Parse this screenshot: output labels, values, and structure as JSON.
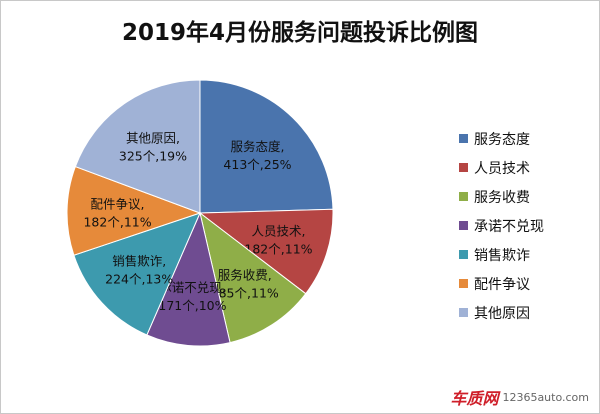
{
  "chart_data": {
    "type": "pie",
    "title": "2019年4月份服务问题投诉比例图",
    "slices": [
      {
        "name": "服务态度",
        "value": 413,
        "pct": "25%",
        "label1": "服务态度,",
        "label2": "413个,25%",
        "color": "#4a74ad"
      },
      {
        "name": "人员技术",
        "value": 182,
        "pct": "11%",
        "label1": "人员技术,",
        "label2": "182个,11%",
        "color": "#b54543"
      },
      {
        "name": "服务收费",
        "value": 185,
        "pct": "11%",
        "label1": "服务收费,",
        "label2": "185个,11%",
        "color": "#8fae48"
      },
      {
        "name": "承诺不兑现",
        "value": 171,
        "pct": "10%",
        "label1": "承诺不兑现,",
        "label2": "171个,10%",
        "color": "#6f4c91"
      },
      {
        "name": "销售欺诈",
        "value": 224,
        "pct": "13%",
        "label1": "销售欺诈,",
        "label2": "224个,13%",
        "color": "#3d9aae"
      },
      {
        "name": "配件争议",
        "value": 182,
        "pct": "11%",
        "label1": "配件争议,",
        "label2": "182个,11%",
        "color": "#e68a3a"
      },
      {
        "name": "其他原因",
        "value": 325,
        "pct": "19%",
        "label1": "其他原因,",
        "label2": "325个,19%",
        "color": "#a0b2d6"
      }
    ],
    "legend_position": "right"
  },
  "watermark": {
    "logo": "车质网",
    "url": "12365auto.com"
  }
}
